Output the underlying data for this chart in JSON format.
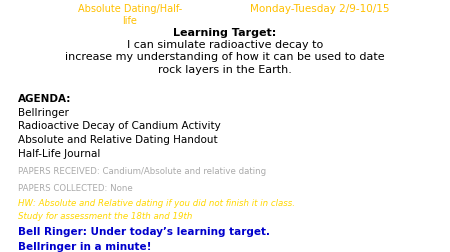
{
  "bg_color": "#ffffff",
  "title_left": "Absolute Dating/Half-\nlife",
  "title_left_color": "#FFC000",
  "title_right": "Monday-Tuesday 2/9-10/15",
  "title_right_color": "#FFC000",
  "learning_target_bold": "Learning Target:",
  "learning_target_text": " I can simulate radioactive decay to\nincrease my understanding of how it can be used to date\nrock layers in the Earth.",
  "agenda_box_color": "#E8E8E8",
  "agenda_lines": [
    "AGENDA:",
    "Bellringer",
    "Radioactive Decay of Candium Activity",
    "Absolute and Relative Dating Handout",
    "Half-Life Journal"
  ],
  "papers_lines": [
    "PAPERS RECEIVED: Candium/Absolute and relative dating",
    "PAPERS COLLECTED: None"
  ],
  "papers_color": "#AAAAAA",
  "hw_line1": "HW: Absolute and Relative dating if you did not finish it in class.",
  "hw_line2": "Study for assessment the 18th and 19th",
  "hw_color": "#FFD700",
  "bell_box_color": "#D3D8E0",
  "bell_line1": "Bell Ringer: Under today’s learning target.",
  "bell_line2": "Bellringer in a minute!",
  "bell_color": "#0000CC"
}
